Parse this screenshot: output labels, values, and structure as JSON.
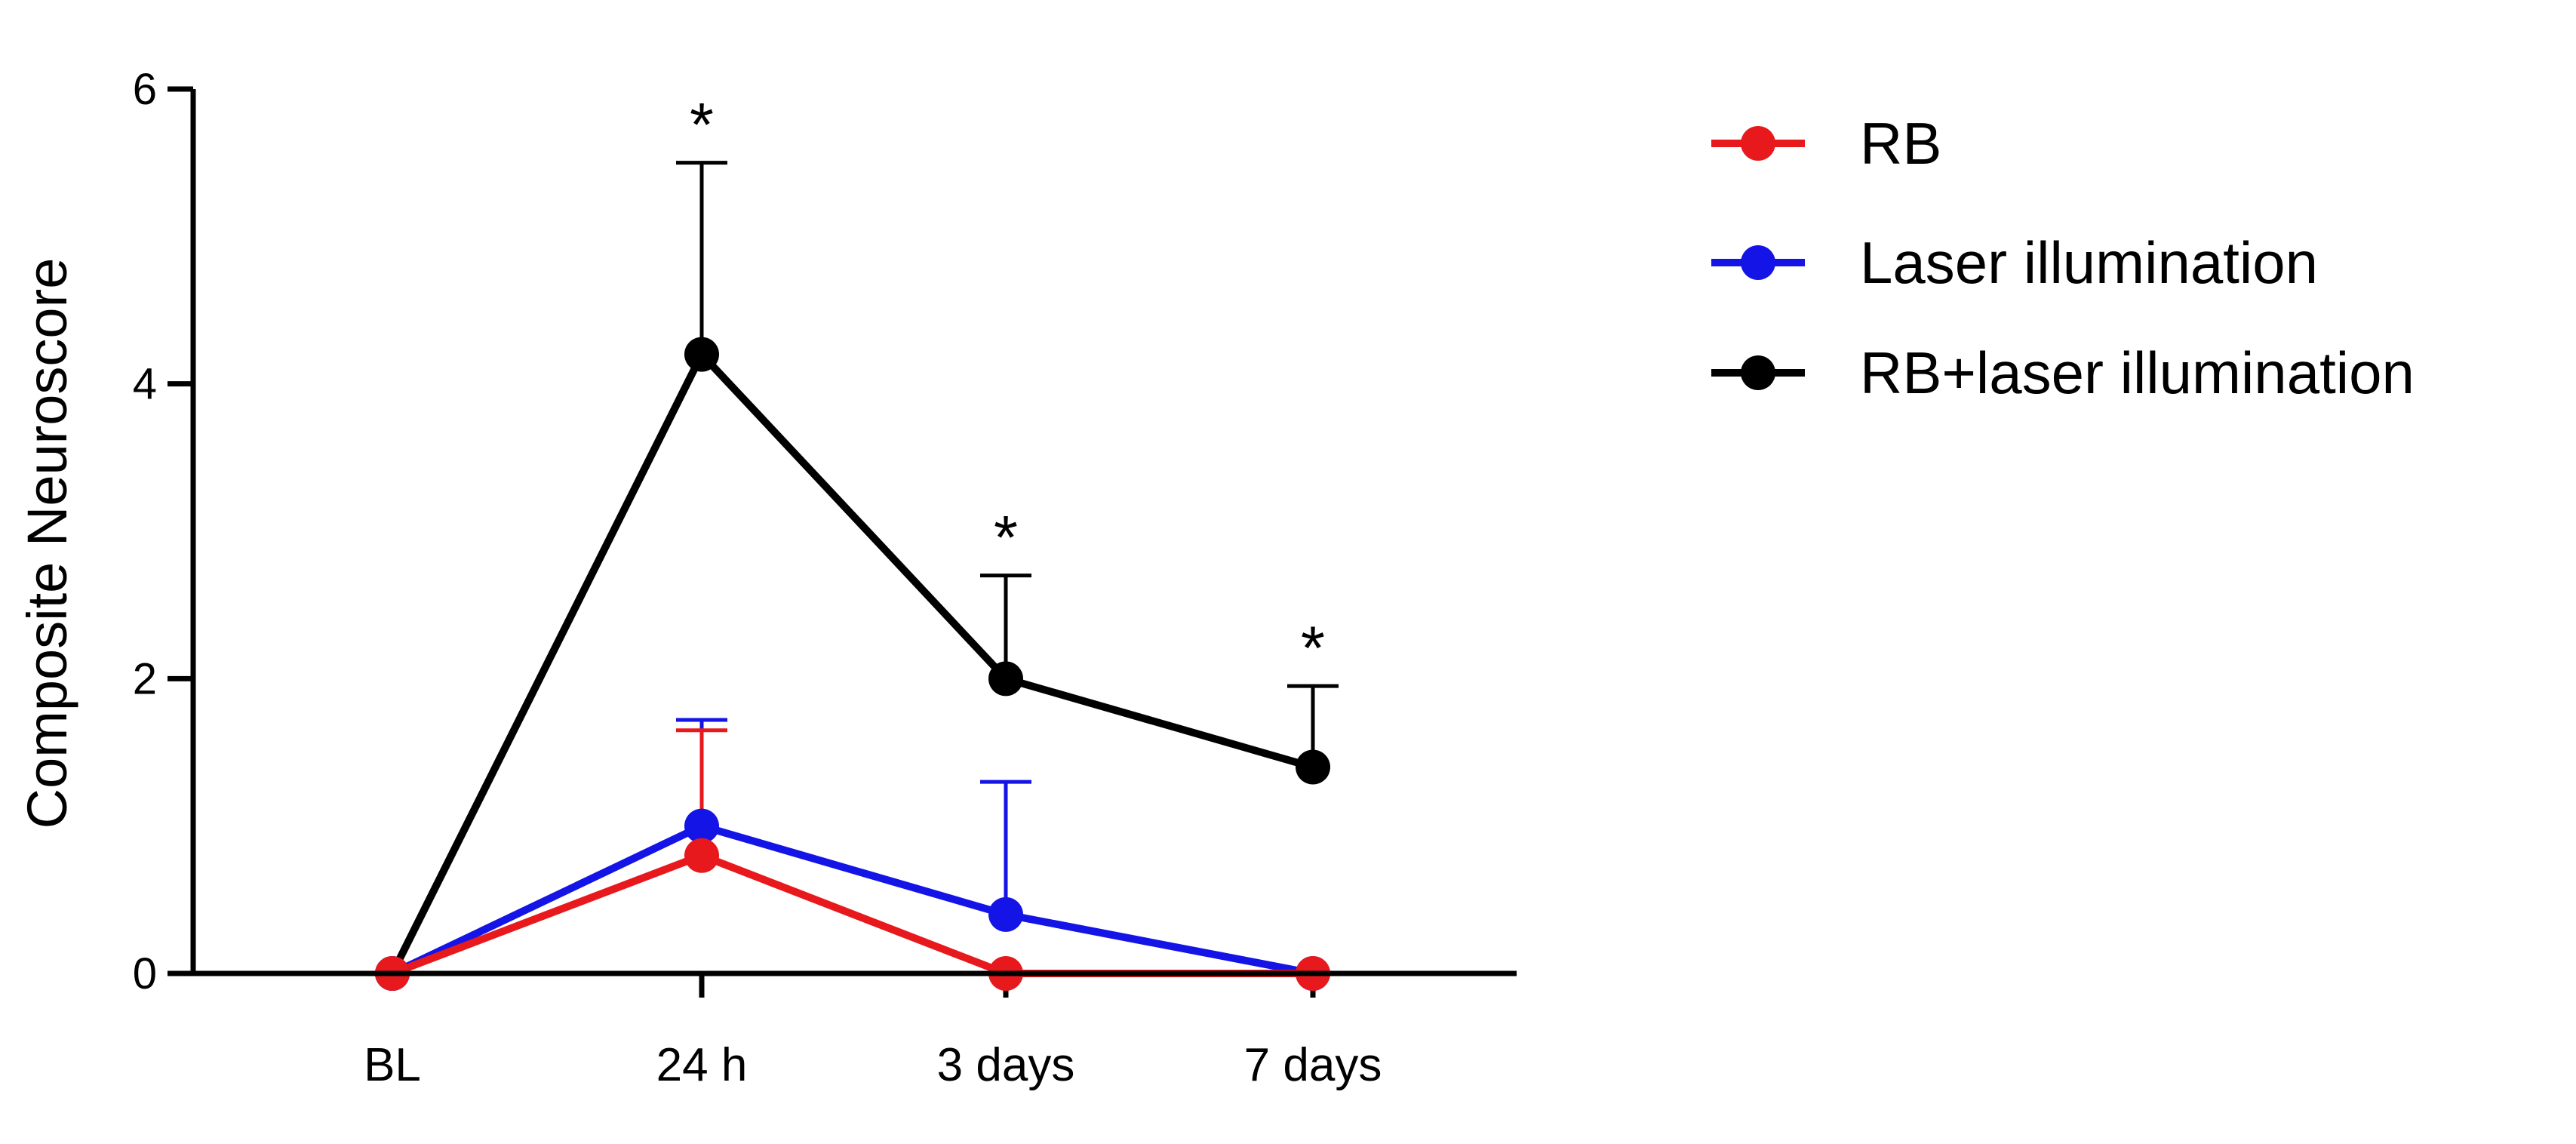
{
  "chart_data": {
    "type": "line",
    "categories": [
      "BL",
      "24 h",
      "3 days",
      "7 days"
    ],
    "ylabel": "Composite Neuroscore",
    "xlabel": "",
    "ylim": [
      0,
      6
    ],
    "yticks": [
      0,
      2,
      4,
      6
    ],
    "legend_position": "right",
    "grid": false,
    "series": [
      {
        "name": "RB",
        "color": "#e8191c",
        "values": [
          0,
          0.8,
          0,
          0
        ],
        "error_upper": [
          0,
          0.85,
          0,
          0
        ]
      },
      {
        "name": "Laser illumination",
        "color": "#1414e6",
        "values": [
          0,
          1.0,
          0.4,
          0
        ],
        "error_upper": [
          0,
          0.72,
          0.9,
          0
        ]
      },
      {
        "name": "RB+laser illumination",
        "color": "#000000",
        "values": [
          0,
          4.2,
          2.0,
          1.4
        ],
        "error_upper": [
          0,
          1.3,
          0.7,
          0.55
        ]
      }
    ],
    "annotations": [
      {
        "category": "24 h",
        "text": "*"
      },
      {
        "category": "3 days",
        "text": "*"
      },
      {
        "category": "7 days",
        "text": "*"
      }
    ]
  }
}
